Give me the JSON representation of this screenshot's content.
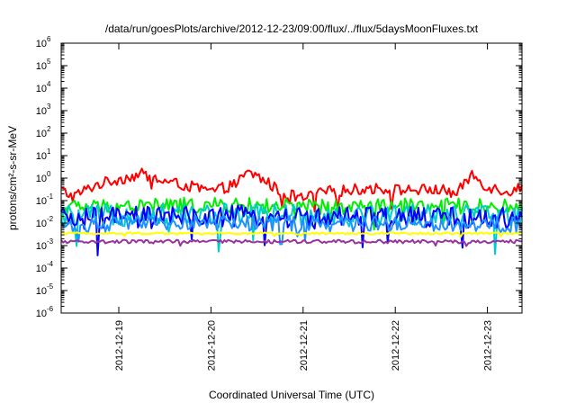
{
  "chart_data": {
    "type": "line",
    "title": "/data/run/goesPlots/archive/2012-12-23/09:00/flux/../flux/5daysMoonFluxes.txt",
    "xlabel": "Coordinated Universal Time (UTC)",
    "ylabel": "protons/cm²-s-sr-MeV",
    "y_scale": "log",
    "y_range": [
      "1e-6",
      "1e6"
    ],
    "y_tick_labels": [
      {
        "base": "10",
        "exp": "6"
      },
      {
        "base": "10",
        "exp": "5"
      },
      {
        "base": "10",
        "exp": "4"
      },
      {
        "base": "10",
        "exp": "3"
      },
      {
        "base": "10",
        "exp": "2"
      },
      {
        "base": "10",
        "exp": "1"
      },
      {
        "base": "10",
        "exp": "0"
      },
      {
        "base": "10",
        "exp": "-1"
      },
      {
        "base": "10",
        "exp": "-2"
      },
      {
        "base": "10",
        "exp": "-3"
      },
      {
        "base": "10",
        "exp": "-4"
      },
      {
        "base": "10",
        "exp": "-5"
      },
      {
        "base": "10",
        "exp": "-6"
      }
    ],
    "x_range": [
      "2012-12-18 09:00",
      "2012-12-23 09:00"
    ],
    "x_tick_labels": [
      "2012-12-19",
      "2012-12-20",
      "2012-12-21",
      "2012-12-22",
      "2012-12-23"
    ],
    "grid": false,
    "legend": "none",
    "series": [
      {
        "color": "#ff0000",
        "x": [
          "2012-12-18 09:00",
          "2012-12-18 12:00",
          "2012-12-18 18:00",
          "2012-12-19 00:00",
          "2012-12-19 06:00",
          "2012-12-19 12:00",
          "2012-12-19 18:00",
          "2012-12-20 00:00",
          "2012-12-20 06:00",
          "2012-12-20 10:00",
          "2012-12-20 14:00",
          "2012-12-20 18:00",
          "2012-12-21 00:00",
          "2012-12-21 06:00",
          "2012-12-21 12:00",
          "2012-12-21 18:00",
          "2012-12-22 00:00",
          "2012-12-22 06:00",
          "2012-12-22 12:00",
          "2012-12-22 16:00",
          "2012-12-22 20:00",
          "2012-12-23 00:00",
          "2012-12-23 06:00",
          "2012-12-23 09:00"
        ],
        "values": [
          0.3,
          0.15,
          0.5,
          0.9,
          1.5,
          0.7,
          0.45,
          0.25,
          0.5,
          1.8,
          0.8,
          0.25,
          0.12,
          0.25,
          0.3,
          0.35,
          0.3,
          0.3,
          0.3,
          0.2,
          1.5,
          0.4,
          0.25,
          0.45
        ],
        "noise": 0.25
      },
      {
        "color": "#00ee00",
        "x": [
          "2012-12-18 09:00",
          "2012-12-19 09:00",
          "2012-12-20 09:00",
          "2012-12-21 09:00",
          "2012-12-22 09:00",
          "2012-12-23 09:00"
        ],
        "values": [
          0.05,
          0.06,
          0.06,
          0.05,
          0.06,
          0.05
        ],
        "noise": 0.35
      },
      {
        "color": "#00cccc",
        "x": [
          "2012-12-18 09:00",
          "2012-12-19 09:00",
          "2012-12-20 09:00",
          "2012-12-21 09:00",
          "2012-12-22 09:00",
          "2012-12-23 09:00"
        ],
        "values": [
          0.02,
          0.025,
          0.025,
          0.022,
          0.025,
          0.02
        ],
        "noise": 0.5
      },
      {
        "color": "#0000ff",
        "x": [
          "2012-12-18 09:00",
          "2012-12-19 09:00",
          "2012-12-20 09:00",
          "2012-12-21 09:00",
          "2012-12-22 09:00",
          "2012-12-23 09:00"
        ],
        "values": [
          0.015,
          0.018,
          0.02,
          0.016,
          0.018,
          0.015
        ],
        "noise": 0.5
      },
      {
        "color": "#1e90ff",
        "x": [
          "2012-12-18 09:00",
          "2012-12-19 09:00",
          "2012-12-20 09:00",
          "2012-12-21 09:00",
          "2012-12-22 09:00",
          "2012-12-23 09:00"
        ],
        "values": [
          0.008,
          0.01,
          0.01,
          0.009,
          0.01,
          0.008
        ],
        "noise": 0.35
      },
      {
        "color": "#ffff00",
        "x": [
          "2012-12-18 09:00",
          "2012-12-19 09:00",
          "2012-12-20 09:00",
          "2012-12-21 09:00",
          "2012-12-22 09:00",
          "2012-12-23 09:00"
        ],
        "values": [
          0.0035,
          0.0035,
          0.0035,
          0.0035,
          0.0035,
          0.0035
        ],
        "noise": 0.05
      },
      {
        "color": "#993399",
        "x": [
          "2012-12-18 09:00",
          "2012-12-19 09:00",
          "2012-12-20 09:00",
          "2012-12-21 09:00",
          "2012-12-22 09:00",
          "2012-12-23 09:00"
        ],
        "values": [
          0.0015,
          0.0015,
          0.0015,
          0.0015,
          0.0015,
          0.0015
        ],
        "noise": 0.08
      }
    ]
  }
}
